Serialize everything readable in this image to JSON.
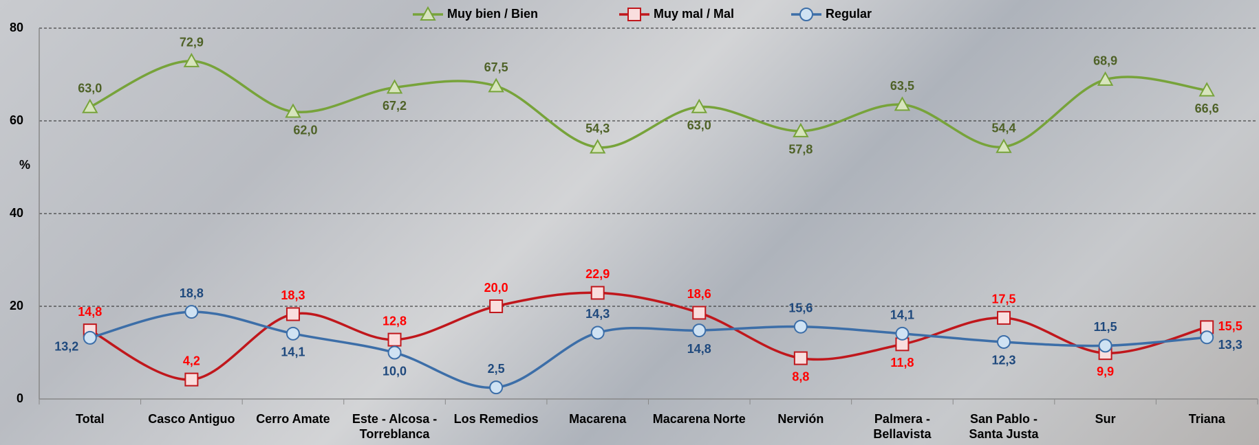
{
  "chart_data": {
    "type": "line",
    "y_label": "%",
    "categories": [
      "Total",
      "Casco Antiguo",
      "Cerro Amate",
      "Este - Alcosa - Torreblanca",
      "Los Remedios",
      "Macarena",
      "Macarena Norte",
      "Nervión",
      "Palmera - Bellavista",
      "San Pablo - Santa Justa",
      "Sur",
      "Triana"
    ],
    "series": [
      {
        "name": "Muy bien / Bien",
        "color": "#77a33a",
        "marker": "triangle",
        "values": [
          63.0,
          72.9,
          62.0,
          67.2,
          67.5,
          54.3,
          63.0,
          57.8,
          63.5,
          54.4,
          68.9,
          66.6
        ],
        "value_labels": [
          "63,0",
          "72,9",
          "62,0",
          "67,2",
          "67,5",
          "54,3",
          "63,0",
          "57,8",
          "63,5",
          "54,4",
          "68,9",
          "66,6"
        ]
      },
      {
        "name": "Muy mal / Mal",
        "color": "#c0171c",
        "marker": "square",
        "values": [
          14.8,
          4.2,
          18.3,
          12.8,
          20.0,
          22.9,
          18.6,
          8.8,
          11.8,
          17.5,
          9.9,
          15.5
        ],
        "value_labels": [
          "14,8",
          "4,2",
          "18,3",
          "12,8",
          "20,0",
          "22,9",
          "18,6",
          "8,8",
          "11,8",
          "17,5",
          "9,9",
          "15,5"
        ]
      },
      {
        "name": "Regular",
        "color": "#3c6ea8",
        "marker": "circle",
        "values": [
          13.2,
          18.8,
          14.1,
          10.0,
          2.5,
          14.3,
          14.8,
          15.6,
          14.1,
          12.3,
          11.5,
          13.3
        ],
        "value_labels": [
          "13,2",
          "18,8",
          "14,1",
          "10,0",
          "2,5",
          "14,3",
          "14,8",
          "15,6",
          "14,1",
          "12,3",
          "11,5",
          "13,3"
        ]
      }
    ],
    "ylim": [
      0,
      80
    ],
    "yticks": [
      0,
      20,
      40,
      60,
      80
    ],
    "grid": true,
    "legend": "top"
  }
}
